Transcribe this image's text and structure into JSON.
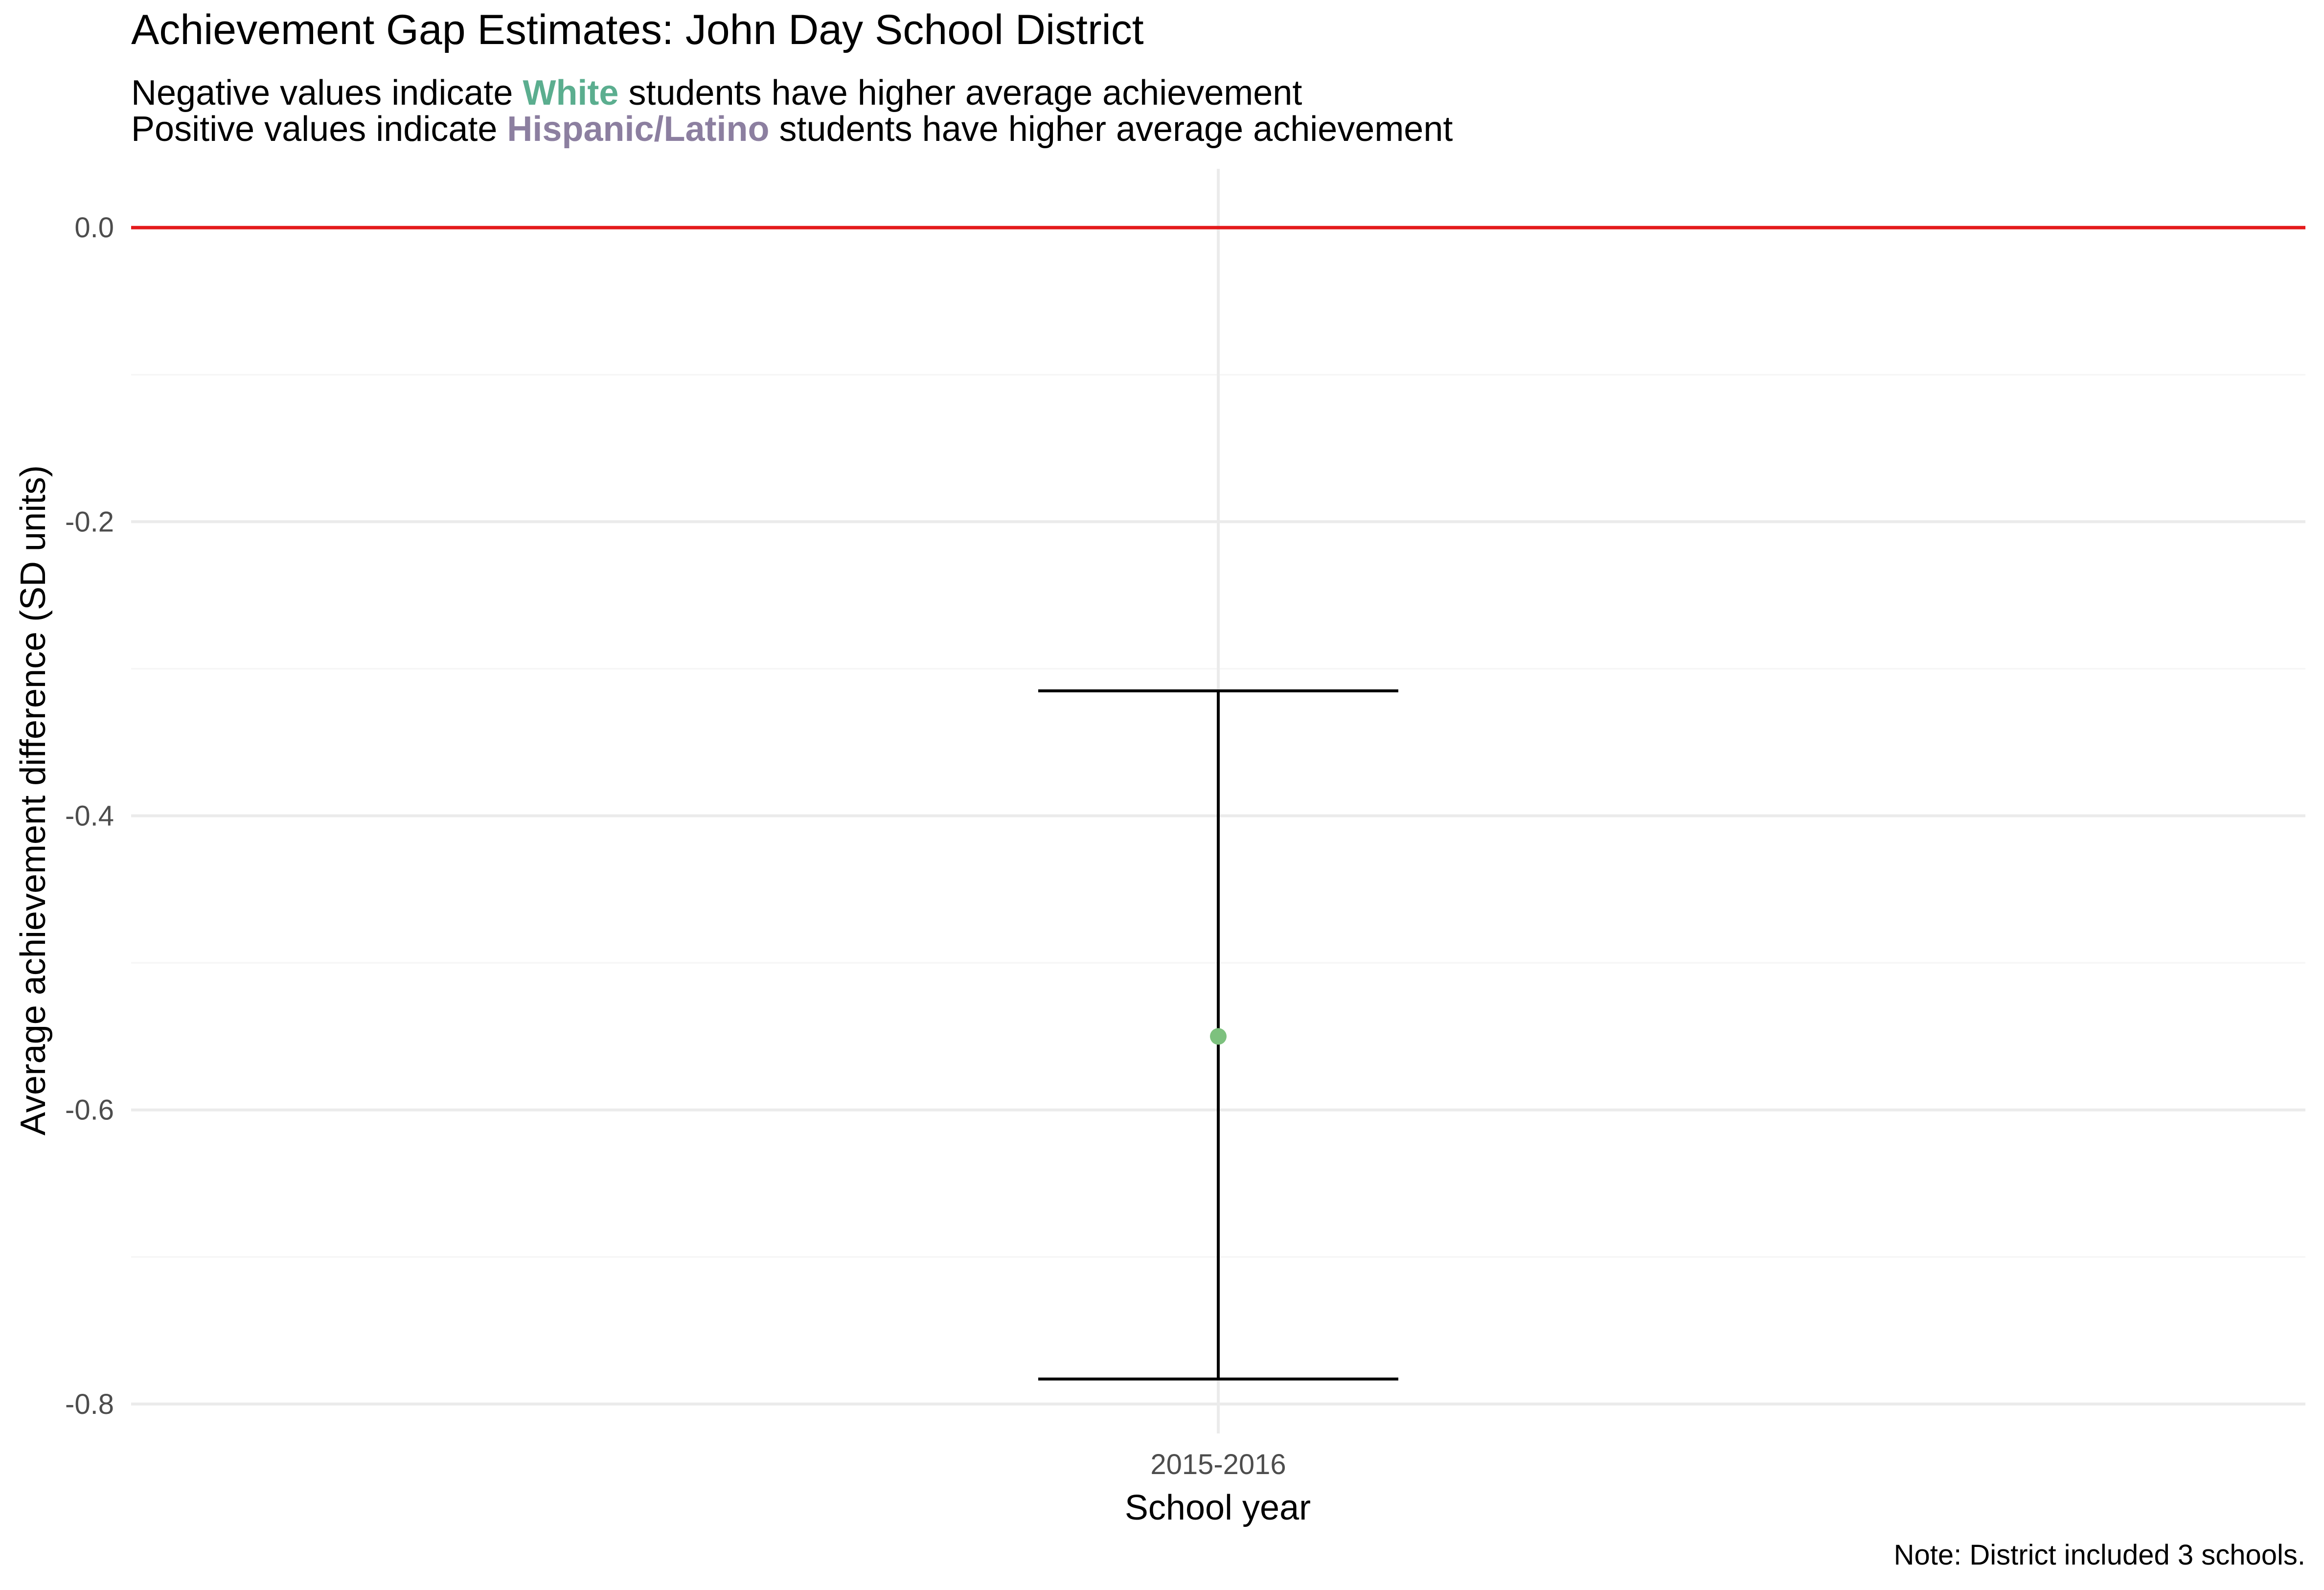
{
  "title": "Achievement Gap Estimates: John Day School District",
  "subtitle": {
    "line1": {
      "prefix": "Negative values indicate ",
      "highlight": "White",
      "suffix": " students have higher average achievement"
    },
    "line2": {
      "prefix": "Positive values indicate ",
      "highlight": "Hispanic/Latino",
      "suffix": " students have higher average achievement"
    }
  },
  "caption": "Note: District included 3 schools.",
  "colors": {
    "white_group": "#5BAE8F",
    "hispanic_group": "#8C7FA0",
    "point": "#7DC17E",
    "reference_line": "#E41A1C",
    "errorbar": "#000000",
    "grid_major": "#EBEBEB",
    "grid_minor": "#F5F5F5",
    "tick_label": "#4D4D4D"
  },
  "chart_data": {
    "type": "scatter",
    "xlabel": "School year",
    "ylabel": "Average achievement difference (SD units)",
    "categories": [
      "2015-2016"
    ],
    "points": [
      {
        "x": "2015-2016",
        "y": -0.55,
        "ymin": -0.783,
        "ymax": -0.315
      }
    ],
    "reference_line": 0.0,
    "ylim": [
      -0.82,
      0.04
    ],
    "y_ticks": [
      0.0,
      -0.2,
      -0.4,
      -0.6,
      -0.8
    ],
    "y_tick_labels": [
      "0.0",
      "-0.2",
      "-0.4",
      "-0.6",
      "-0.8"
    ],
    "y_minor_ticks": [
      -0.1,
      -0.3,
      -0.5,
      -0.7
    ],
    "grid": true,
    "legend": "none"
  }
}
